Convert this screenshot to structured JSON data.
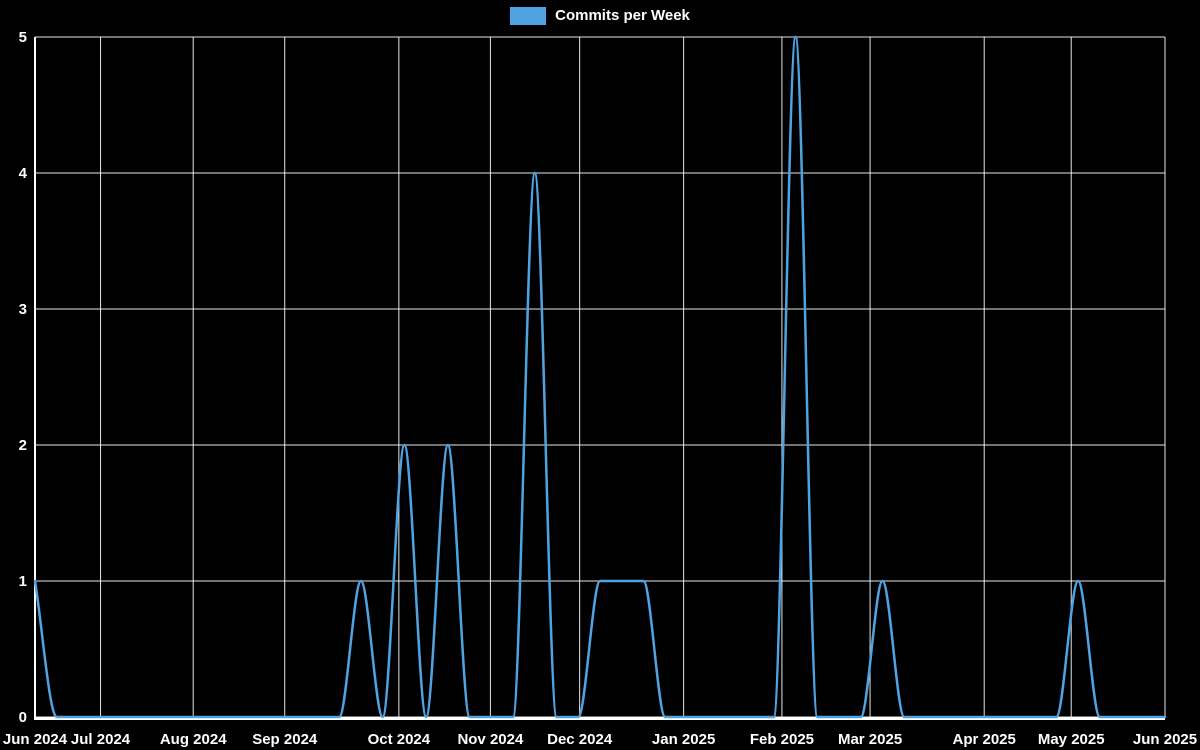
{
  "legend": {
    "label": "Commits per Week",
    "swatch_color": "#4fa3e3"
  },
  "chart_data": {
    "type": "line",
    "title": "Commits per Week",
    "xlabel": "",
    "ylabel": "",
    "x_unit": "week",
    "x_tick_labels": [
      "Jun 2024",
      "Jul 2024",
      "Aug 2024",
      "Sep 2024",
      "Oct 2024",
      "Nov 2024",
      "Dec 2024",
      "Jan 2025",
      "Feb 2025",
      "Mar 2025",
      "Apr 2025",
      "May 2025",
      "Jun 2025"
    ],
    "x_tick_positions": [
      0,
      0.058,
      0.14,
      0.221,
      0.322,
      0.403,
      0.482,
      0.574,
      0.661,
      0.739,
      0.84,
      0.917,
      1.0
    ],
    "y_ticks": [
      0,
      1,
      2,
      3,
      4,
      5
    ],
    "ylim": [
      0,
      5
    ],
    "grid": true,
    "legend_position": "top-center",
    "background_color": "#000000",
    "grid_color": "#ffffff",
    "text_color": "#ffffff",
    "smoothing": "monotone",
    "series": [
      {
        "name": "Commits per Week",
        "color": "#4fa3e3",
        "values": [
          1,
          0,
          0,
          0,
          0,
          0,
          0,
          0,
          0,
          0,
          0,
          0,
          0,
          0,
          0,
          1,
          0,
          2,
          0,
          2,
          0,
          0,
          0,
          4,
          0,
          0,
          1,
          1,
          1,
          0,
          0,
          0,
          0,
          0,
          0,
          5,
          0,
          0,
          0,
          1,
          0,
          0,
          0,
          0,
          0,
          0,
          0,
          0,
          1,
          0,
          0,
          0,
          0
        ]
      }
    ]
  }
}
